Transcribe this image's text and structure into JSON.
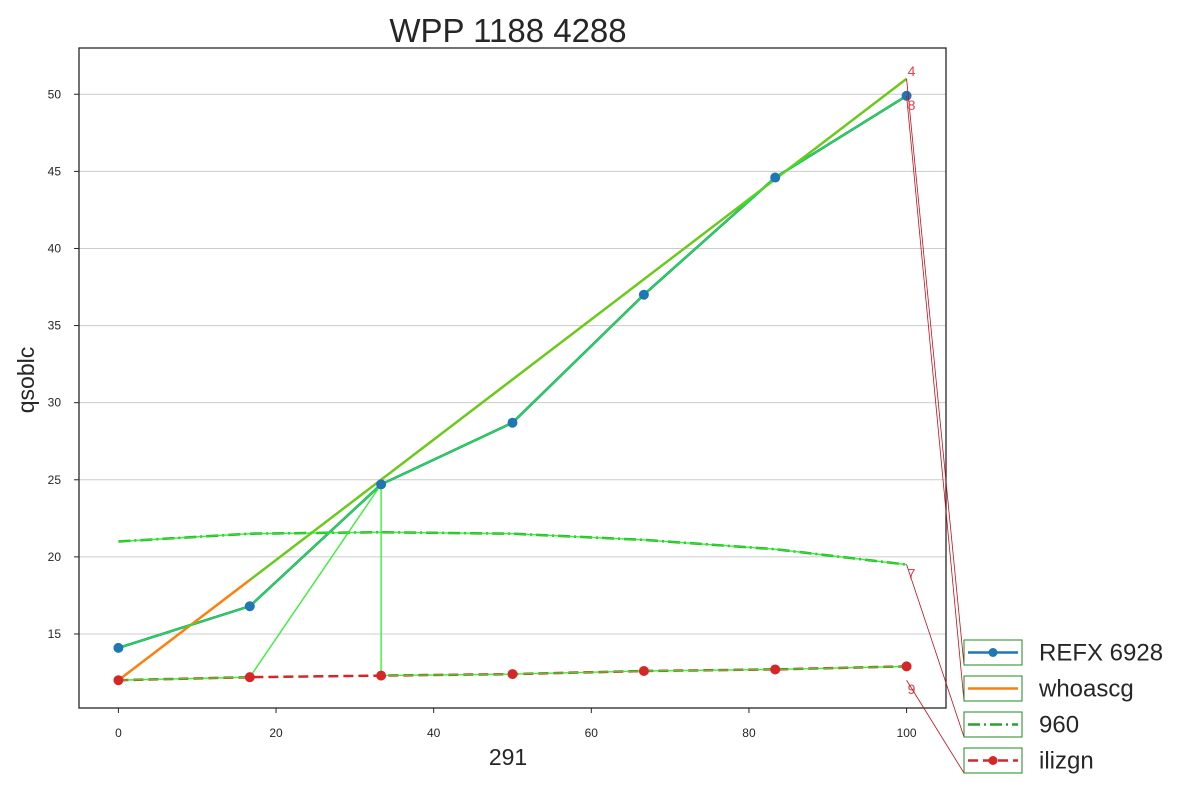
{
  "chart_data": {
    "type": "line",
    "title": "WPP 1188 4288",
    "xlabel": "291",
    "ylabel": "qsoblc",
    "xlim": [
      -5,
      105
    ],
    "ylim": [
      10.2,
      53
    ],
    "xticks": [
      0,
      20,
      40,
      60,
      80,
      100
    ],
    "yticks": [
      15,
      20,
      25,
      30,
      35,
      40,
      45,
      50
    ],
    "grid": {
      "y": true,
      "x": false
    },
    "legend_placement": "lower right, outside plot",
    "series": [
      {
        "name": "REFX 6928",
        "color": "#1f77b4",
        "linestyle": "solid",
        "marker": "circle",
        "x": [
          0,
          16.67,
          33.33,
          50,
          66.67,
          83.33,
          100
        ],
        "y": [
          14.1,
          16.8,
          24.7,
          28.7,
          37.0,
          44.6,
          49.9
        ]
      },
      {
        "name": "whoascg",
        "color": "#ff7f0e",
        "linestyle": "solid",
        "marker": "none",
        "x": [
          0,
          16.67,
          33.33,
          50,
          66.67,
          83.33,
          100
        ],
        "y": [
          12.0,
          18.5,
          25.0,
          31.5,
          38.0,
          44.5,
          51.0
        ]
      },
      {
        "name": "960",
        "color": "#2ca02c",
        "linestyle": "dashdot",
        "marker": "none",
        "x": [
          0,
          16.67,
          33.33,
          50,
          66.67,
          83.33,
          100
        ],
        "y": [
          21.0,
          21.5,
          21.6,
          21.5,
          21.1,
          20.5,
          19.5
        ]
      },
      {
        "name": "ilizgn",
        "color": "#d62728",
        "linestyle": "dashed",
        "marker": "circle",
        "x": [
          0,
          16.67,
          33.33,
          50,
          66.67,
          83.33,
          100
        ],
        "y": [
          12.0,
          12.2,
          12.3,
          12.4,
          12.6,
          12.7,
          12.9
        ]
      }
    ],
    "highlight_color": "#22ee22",
    "annotations": [
      {
        "text": "4",
        "x": 100,
        "y": 51.0
      },
      {
        "text": "8",
        "x": 100,
        "y": 49.9
      },
      {
        "text": "7",
        "x": 100,
        "y": 19.5
      },
      {
        "text": "9",
        "x": 100,
        "y": 12.0
      }
    ]
  }
}
